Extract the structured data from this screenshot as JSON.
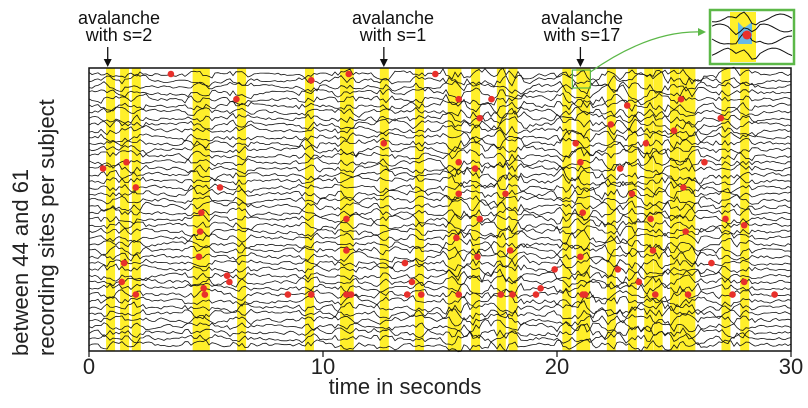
{
  "chart_data": {
    "type": "line",
    "title": "",
    "xlabel": "time in seconds",
    "ylabel_lines": [
      "between 44 and 61",
      "recording sites per subject"
    ],
    "x_ticks": [
      "0",
      "10",
      "20",
      "30"
    ],
    "xlim": [
      0,
      30
    ],
    "trace_count": 44,
    "colors": {
      "trace": "#111111",
      "avalanche_band": "#ffef2a",
      "event_marker": "#e8302b",
      "inset_frame": "#5cb848",
      "inset_highlight": "#66b9e8"
    },
    "annotations": [
      {
        "label_line1": "avalanche",
        "label_line2": "with s=2",
        "x": 0.8
      },
      {
        "label_line1": "avalanche",
        "label_line2": "with s=1",
        "x": 12.6
      },
      {
        "label_line1": "avalanche",
        "label_line2": "with s=17",
        "x": 21.0
      }
    ],
    "avalanche_bands": [
      0.9,
      1.5,
      2.0,
      4.6,
      4.8,
      4.95,
      6.5,
      9.4,
      10.9,
      11.1,
      12.6,
      14.1,
      15.5,
      15.7,
      16.5,
      17.6,
      18.1,
      20.4,
      21.0,
      21.2,
      22.3,
      23.2,
      23.9,
      24.3,
      25.0,
      25.4,
      25.7,
      27.2,
      28.0
    ],
    "events": [
      {
        "t": 3.5,
        "ch": 1
      },
      {
        "t": 6.3,
        "ch": 5
      },
      {
        "t": 9.5,
        "ch": 2
      },
      {
        "t": 11.1,
        "ch": 1
      },
      {
        "t": 14.8,
        "ch": 1
      },
      {
        "t": 15.8,
        "ch": 6
      },
      {
        "t": 16.7,
        "ch": 9
      },
      {
        "t": 12.6,
        "ch": 14
      },
      {
        "t": 0.6,
        "ch": 19
      },
      {
        "t": 1.6,
        "ch": 17
      },
      {
        "t": 2.0,
        "ch": 22
      },
      {
        "t": 5.6,
        "ch": 22
      },
      {
        "t": 4.8,
        "ch": 27
      },
      {
        "t": 4.75,
        "ch": 31
      },
      {
        "t": 4.7,
        "ch": 36
      },
      {
        "t": 1.5,
        "ch": 37
      },
      {
        "t": 1.4,
        "ch": 40
      },
      {
        "t": 5.9,
        "ch": 39
      },
      {
        "t": 4.9,
        "ch": 42
      },
      {
        "t": 6.0,
        "ch": 41
      },
      {
        "t": 2.0,
        "ch": 46
      },
      {
        "t": 4.95,
        "ch": 49
      },
      {
        "t": 8.5,
        "ch": 50
      },
      {
        "t": 9.5,
        "ch": 47
      },
      {
        "t": 11.0,
        "ch": 29
      },
      {
        "t": 11.0,
        "ch": 35
      },
      {
        "t": 11.0,
        "ch": 44
      },
      {
        "t": 11.2,
        "ch": 48
      },
      {
        "t": 13.5,
        "ch": 37
      },
      {
        "t": 13.8,
        "ch": 40
      },
      {
        "t": 13.6,
        "ch": 50
      },
      {
        "t": 14.2,
        "ch": 48
      },
      {
        "t": 15.8,
        "ch": 17
      },
      {
        "t": 15.8,
        "ch": 24
      },
      {
        "t": 15.7,
        "ch": 32
      },
      {
        "t": 15.8,
        "ch": 43
      },
      {
        "t": 16.5,
        "ch": 19
      },
      {
        "t": 16.7,
        "ch": 28
      },
      {
        "t": 16.6,
        "ch": 36
      },
      {
        "t": 17.8,
        "ch": 24
      },
      {
        "t": 18.0,
        "ch": 34
      },
      {
        "t": 18.1,
        "ch": 45
      },
      {
        "t": 17.6,
        "ch": 48
      },
      {
        "t": 19.1,
        "ch": 51
      },
      {
        "t": 19.9,
        "ch": 38
      },
      {
        "t": 21.0,
        "ch": 18
      },
      {
        "t": 21.1,
        "ch": 27
      },
      {
        "t": 21.0,
        "ch": 36
      },
      {
        "t": 21.2,
        "ch": 44
      },
      {
        "t": 21.1,
        "ch": 50
      },
      {
        "t": 22.3,
        "ch": 10
      },
      {
        "t": 22.7,
        "ch": 19
      },
      {
        "t": 22.6,
        "ch": 38
      },
      {
        "t": 23.2,
        "ch": 24
      },
      {
        "t": 23.5,
        "ch": 41
      },
      {
        "t": 23.8,
        "ch": 14
      },
      {
        "t": 24.0,
        "ch": 28
      },
      {
        "t": 24.1,
        "ch": 35
      },
      {
        "t": 24.2,
        "ch": 45
      },
      {
        "t": 25.3,
        "ch": 6
      },
      {
        "t": 25.4,
        "ch": 22
      },
      {
        "t": 25.5,
        "ch": 31
      },
      {
        "t": 25.6,
        "ch": 43
      },
      {
        "t": 26.3,
        "ch": 18
      },
      {
        "t": 26.6,
        "ch": 37
      },
      {
        "t": 27.0,
        "ch": 9
      },
      {
        "t": 27.2,
        "ch": 28
      },
      {
        "t": 27.5,
        "ch": 45
      },
      {
        "t": 28.0,
        "ch": 30
      },
      {
        "t": 28.0,
        "ch": 41
      },
      {
        "t": 29.3,
        "ch": 49
      },
      {
        "t": 25.0,
        "ch": 12
      },
      {
        "t": 23.0,
        "ch": 7
      },
      {
        "t": 20.8,
        "ch": 14
      },
      {
        "t": 19.3,
        "ch": 42
      },
      {
        "t": 17.2,
        "ch": 5
      }
    ]
  }
}
